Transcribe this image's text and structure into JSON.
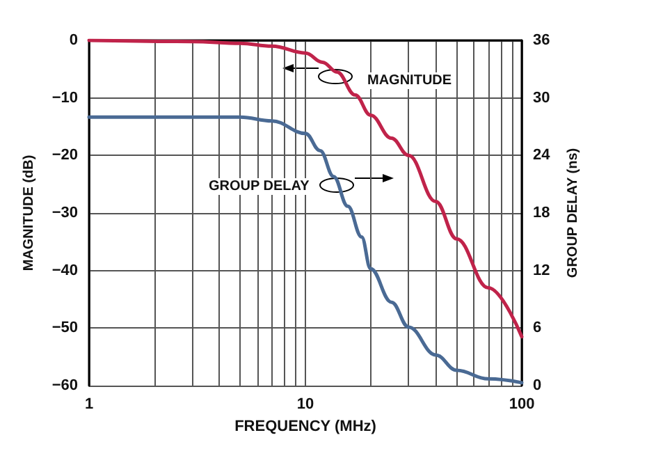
{
  "chart_data": {
    "type": "line",
    "xlabel": "FREQUENCY (MHz)",
    "ylabel": "MAGNITUDE (dB)",
    "y2label": "GROUP DELAY (ns)",
    "annotations": [
      "MAGNITUDE",
      "GROUP DELAY"
    ],
    "log": "x",
    "grid": true,
    "marker": "none",
    "line_style": "solid",
    "xlim": [
      1,
      100
    ],
    "xticks": [
      1,
      {
        "value": 2,
        "label": null
      },
      {
        "value": 3,
        "label": null
      },
      {
        "value": 4,
        "label": null
      },
      {
        "value": 5,
        "label": null
      },
      {
        "value": 6,
        "label": null
      },
      {
        "value": 7,
        "label": null
      },
      {
        "value": 8,
        "label": null
      },
      {
        "value": 9,
        "label": null
      },
      10,
      {
        "value": 20,
        "label": null
      },
      {
        "value": 30,
        "label": null
      },
      {
        "value": 40,
        "label": null
      },
      {
        "value": 50,
        "label": null
      },
      {
        "value": 60,
        "label": null
      },
      {
        "value": 70,
        "label": null
      },
      {
        "value": 80,
        "label": null
      },
      {
        "value": 90,
        "label": null
      },
      100
    ],
    "ylim": [
      -60,
      0
    ],
    "yticks": [
      -60,
      -50,
      -40,
      -30,
      -20,
      -10,
      0
    ],
    "y2lim": [
      0,
      36
    ],
    "y2ticks": [
      0,
      6,
      12,
      18,
      24,
      30,
      36
    ],
    "series": [
      {
        "color": "#c0234a",
        "x": [
          1,
          3,
          5,
          7,
          10,
          12,
          14,
          17,
          20,
          25,
          30,
          40,
          50,
          70,
          100
        ],
        "values": [
          0,
          -0.2,
          -0.5,
          -1,
          -2.2,
          -3.8,
          -5.5,
          -9.5,
          -13,
          -17,
          -20,
          -28,
          -34.5,
          -43,
          -51.5
        ]
      },
      {
        "color": "#4a6a94",
        "axis": "y2",
        "x": [
          1,
          5,
          7,
          10,
          11.7,
          13.5,
          15.7,
          18.2,
          20,
          25,
          30,
          40,
          50,
          70,
          100
        ],
        "values": [
          28,
          28,
          27.6,
          26.3,
          24.5,
          21.8,
          18.7,
          15.5,
          12.2,
          8.7,
          6.1,
          3.2,
          1.6,
          0.7,
          0.3
        ]
      }
    ]
  }
}
